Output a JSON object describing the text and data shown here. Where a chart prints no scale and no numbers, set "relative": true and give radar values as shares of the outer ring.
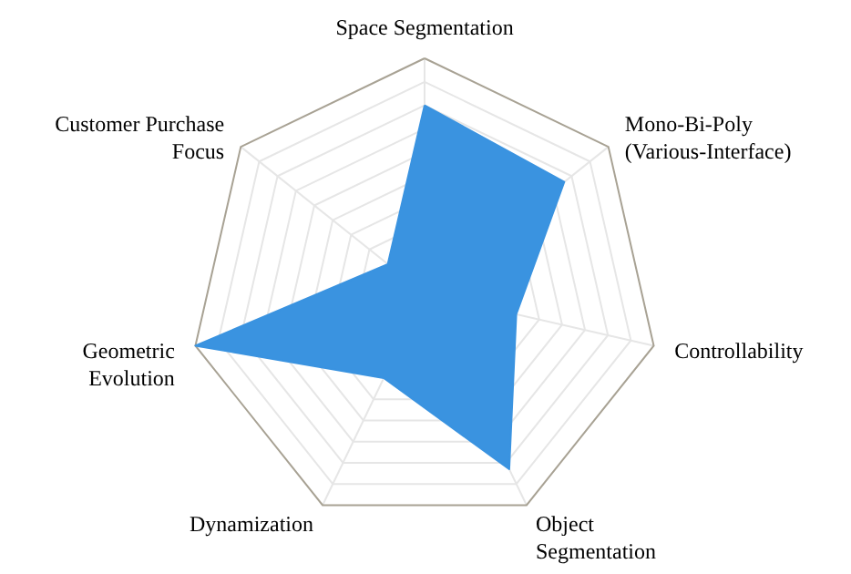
{
  "chart_data": {
    "type": "radar",
    "relative": true,
    "grid": true,
    "categories": [
      "Space Segmentation",
      "Mono-Bi-Poly (Various-Interface)",
      "Controllability",
      "Object Segmentation",
      "Dynamization",
      "Geometric Evolution",
      "Customer Purchase Focus"
    ],
    "series": [
      {
        "color": "#3a93e0",
        "values": [
          0.8,
          0.76,
          0.4,
          0.83,
          0.4,
          1,
          0.2
        ]
      }
    ]
  }
}
